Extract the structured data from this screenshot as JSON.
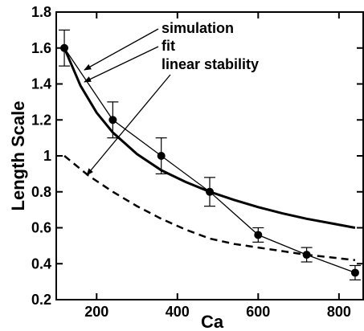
{
  "chart_data": {
    "type": "line",
    "title": "",
    "xlabel": "Ca",
    "ylabel": "Length Scale",
    "xlim": [
      100,
      860
    ],
    "ylim": [
      0.2,
      1.8
    ],
    "x_ticks": [
      200,
      400,
      600,
      800
    ],
    "y_ticks": [
      0.2,
      0.4,
      0.6,
      0.8,
      1,
      1.2,
      1.4,
      1.6,
      1.8
    ],
    "x_tick_labels": [
      "200",
      "400",
      "600",
      "800"
    ],
    "y_tick_labels": [
      "0.2",
      "0.4",
      "0.6",
      "0.8",
      "1",
      "1.2",
      "1.4",
      "1.6",
      "1.8"
    ],
    "grid": false,
    "series": [
      {
        "name": "simulation",
        "style": "thin line with filled circles and error bars",
        "x": [
          120,
          240,
          360,
          480,
          600,
          720,
          840
        ],
        "y": [
          1.6,
          1.2,
          1.0,
          0.8,
          0.56,
          0.45,
          0.35
        ],
        "error": [
          0.1,
          0.1,
          0.1,
          0.08,
          0.04,
          0.04,
          0.04
        ]
      },
      {
        "name": "fit",
        "style": "thick solid line",
        "x": [
          120,
          160,
          200,
          240,
          300,
          360,
          420,
          480,
          540,
          600,
          660,
          720,
          780,
          840
        ],
        "y": [
          1.6,
          1.39,
          1.24,
          1.13,
          1.01,
          0.92,
          0.855,
          0.8,
          0.755,
          0.715,
          0.68,
          0.65,
          0.625,
          0.6
        ]
      },
      {
        "name": "linear stability",
        "style": "thick dashed line",
        "x": [
          120,
          180,
          240,
          300,
          360,
          420,
          480,
          540,
          600,
          660,
          720,
          780,
          840
        ],
        "y": [
          1.0,
          0.89,
          0.8,
          0.72,
          0.65,
          0.59,
          0.54,
          0.51,
          0.49,
          0.47,
          0.45,
          0.435,
          0.42
        ]
      }
    ],
    "annotations": [
      {
        "text": "simulation",
        "points_to_series": "simulation"
      },
      {
        "text": "fit",
        "points_to_series": "fit"
      },
      {
        "text": "linear stability",
        "points_to_series": "linear stability"
      }
    ]
  }
}
